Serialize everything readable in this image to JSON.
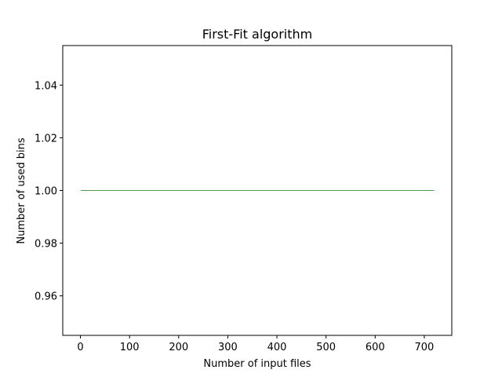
{
  "chart_data": {
    "type": "line",
    "title": "First-Fit algorithm",
    "xlabel": "Number of input files",
    "ylabel": "Number of used bins",
    "xlim": [
      -36,
      756
    ],
    "ylim": [
      0.945,
      1.055
    ],
    "xticks": [
      0,
      100,
      200,
      300,
      400,
      500,
      600,
      700
    ],
    "yticks": [
      0.96,
      0.98,
      1.0,
      1.02,
      1.04
    ],
    "ytick_labels": [
      "0.96",
      "0.98",
      "1.00",
      "1.02",
      "1.04"
    ],
    "grid": false,
    "colors": {
      "series": "#4e9a4e",
      "axes": "#000000"
    },
    "series": [
      {
        "x": [
          1,
          720
        ],
        "y": [
          1,
          1
        ]
      }
    ]
  }
}
